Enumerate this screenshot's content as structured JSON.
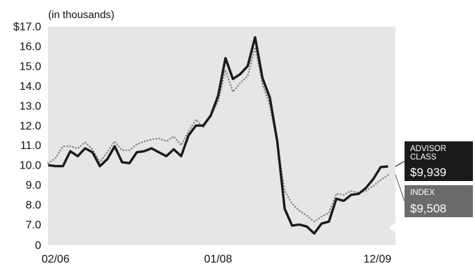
{
  "chart_data": {
    "type": "line",
    "subtitle": "(in thousands)",
    "y_tick_labels": [
      "0",
      "7.0",
      "8.0",
      "9.0",
      "10.0",
      "11.0",
      "12.0",
      "13.0",
      "14.0",
      "15.0",
      "16.0",
      "$17.0"
    ],
    "y_tick_values": [
      0,
      7,
      8,
      9,
      10,
      11,
      12,
      13,
      14,
      15,
      16,
      17
    ],
    "ylim": [
      6.5,
      17
    ],
    "y_axis_break": true,
    "x_tick_labels": [
      "02/06",
      "01/08",
      "12/09"
    ],
    "x_tick_positions": [
      1,
      23,
      47
    ],
    "xlim": [
      0,
      47
    ],
    "grid": false,
    "series": [
      {
        "name": "ADVISOR CLASS",
        "color": "#1a1a1a",
        "style": "solid",
        "end_value": "$9,939",
        "values": [
          10.0,
          9.95,
          9.95,
          10.7,
          10.45,
          10.85,
          10.65,
          9.95,
          10.3,
          10.95,
          10.15,
          10.1,
          10.65,
          10.7,
          10.85,
          10.65,
          10.45,
          10.8,
          10.45,
          11.5,
          12.0,
          12.0,
          12.5,
          13.5,
          15.4,
          14.35,
          14.6,
          15.0,
          16.45,
          14.4,
          13.4,
          11.2,
          7.8,
          6.95,
          7.0,
          6.9,
          6.55,
          7.05,
          7.15,
          8.3,
          8.2,
          8.5,
          8.55,
          8.85,
          9.3,
          9.9,
          9.939
        ]
      },
      {
        "name": "INDEX",
        "color": "#8a8a8a",
        "style": "dotted",
        "end_value": "$9,508",
        "values": [
          10.1,
          10.35,
          10.95,
          10.95,
          10.85,
          11.15,
          10.8,
          10.15,
          10.65,
          11.2,
          10.75,
          10.75,
          11.05,
          11.2,
          11.3,
          11.35,
          11.2,
          11.45,
          11.0,
          11.7,
          12.3,
          11.9,
          12.5,
          13.2,
          14.8,
          13.7,
          14.15,
          14.5,
          15.95,
          14.1,
          13.0,
          11.1,
          8.7,
          8.05,
          7.7,
          7.45,
          7.15,
          7.4,
          7.6,
          8.55,
          8.5,
          8.7,
          8.6,
          8.7,
          8.95,
          9.25,
          9.508
        ]
      }
    ],
    "background_color": "#e6e6e6"
  }
}
